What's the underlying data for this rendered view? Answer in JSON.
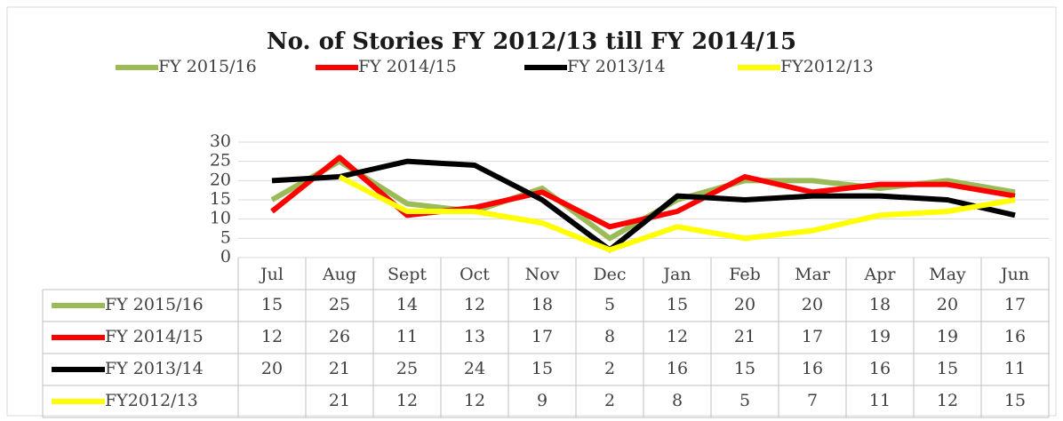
{
  "chart_data": {
    "type": "line",
    "title": "No. of Stories FY 2012/13 till  FY 2014/15",
    "categories": [
      "Jul",
      "Aug",
      "Sept",
      "Oct",
      "Nov",
      "Dec",
      "Jan",
      "Feb",
      "Mar",
      "Apr",
      "May",
      "Jun"
    ],
    "series": [
      {
        "name": "FY 2015/16",
        "color": "#9bbb59",
        "values": [
          15,
          25,
          14,
          12,
          18,
          5,
          15,
          20,
          20,
          18,
          20,
          17
        ]
      },
      {
        "name": "FY 2014/15",
        "color": "#ff0000",
        "values": [
          12,
          26,
          11,
          13,
          17,
          8,
          12,
          21,
          17,
          19,
          19,
          16
        ]
      },
      {
        "name": "FY 2013/14",
        "color": "#000000",
        "values": [
          20,
          21,
          25,
          24,
          15,
          2,
          16,
          15,
          16,
          16,
          15,
          11
        ]
      },
      {
        "name": "FY2012/13",
        "color": "#ffff00",
        "values": [
          null,
          21,
          12,
          12,
          9,
          2,
          8,
          5,
          7,
          11,
          12,
          15
        ]
      }
    ],
    "ylim": [
      0,
      30
    ],
    "yticks": [
      0,
      5,
      10,
      15,
      20,
      25,
      30
    ],
    "grid": true,
    "legend": "top"
  }
}
